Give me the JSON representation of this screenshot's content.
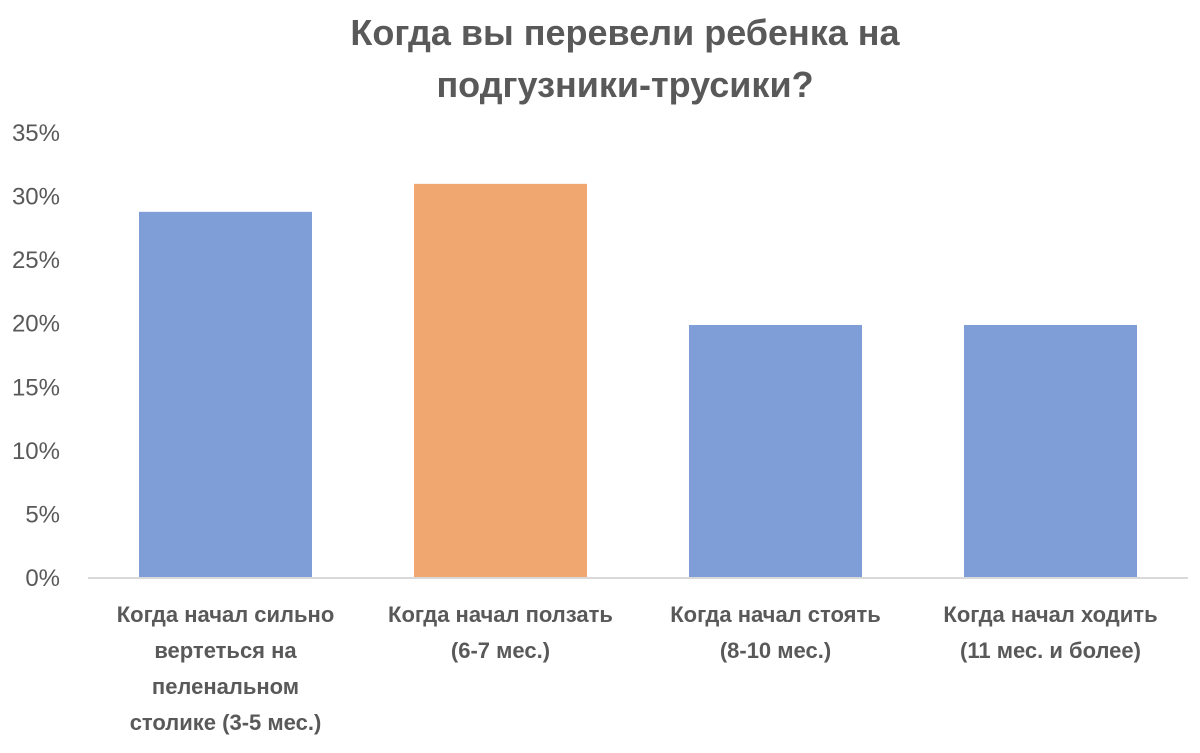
{
  "chart_data": {
    "type": "bar",
    "title": [
      "Когда вы перевели ребенка на",
      "подгузники-трусики?"
    ],
    "categories": [
      [
        "Когда начал сильно",
        "вертеться на",
        "пеленальном",
        "столике (3-5 мес.)"
      ],
      [
        "Когда начал ползать",
        "(6-7 мес.)"
      ],
      [
        "Когда начал стоять",
        "(8-10 мес.)"
      ],
      [
        "Когда начал ходить",
        "(11 мес. и более)"
      ]
    ],
    "values": [
      28.8,
      31.0,
      19.9,
      19.9
    ],
    "colors": [
      "#7f9dd6",
      "#f0a770",
      "#7f9dd6",
      "#7f9dd6"
    ],
    "ylim": [
      0,
      35
    ],
    "yticks": [
      "0%",
      "5%",
      "10%",
      "15%",
      "20%",
      "25%",
      "30%",
      "35%"
    ],
    "yticks_values": [
      0,
      5,
      10,
      15,
      20,
      25,
      30,
      35
    ],
    "xlabel": "",
    "ylabel": "",
    "grid": false,
    "axis_color": "#d9d9d9"
  }
}
